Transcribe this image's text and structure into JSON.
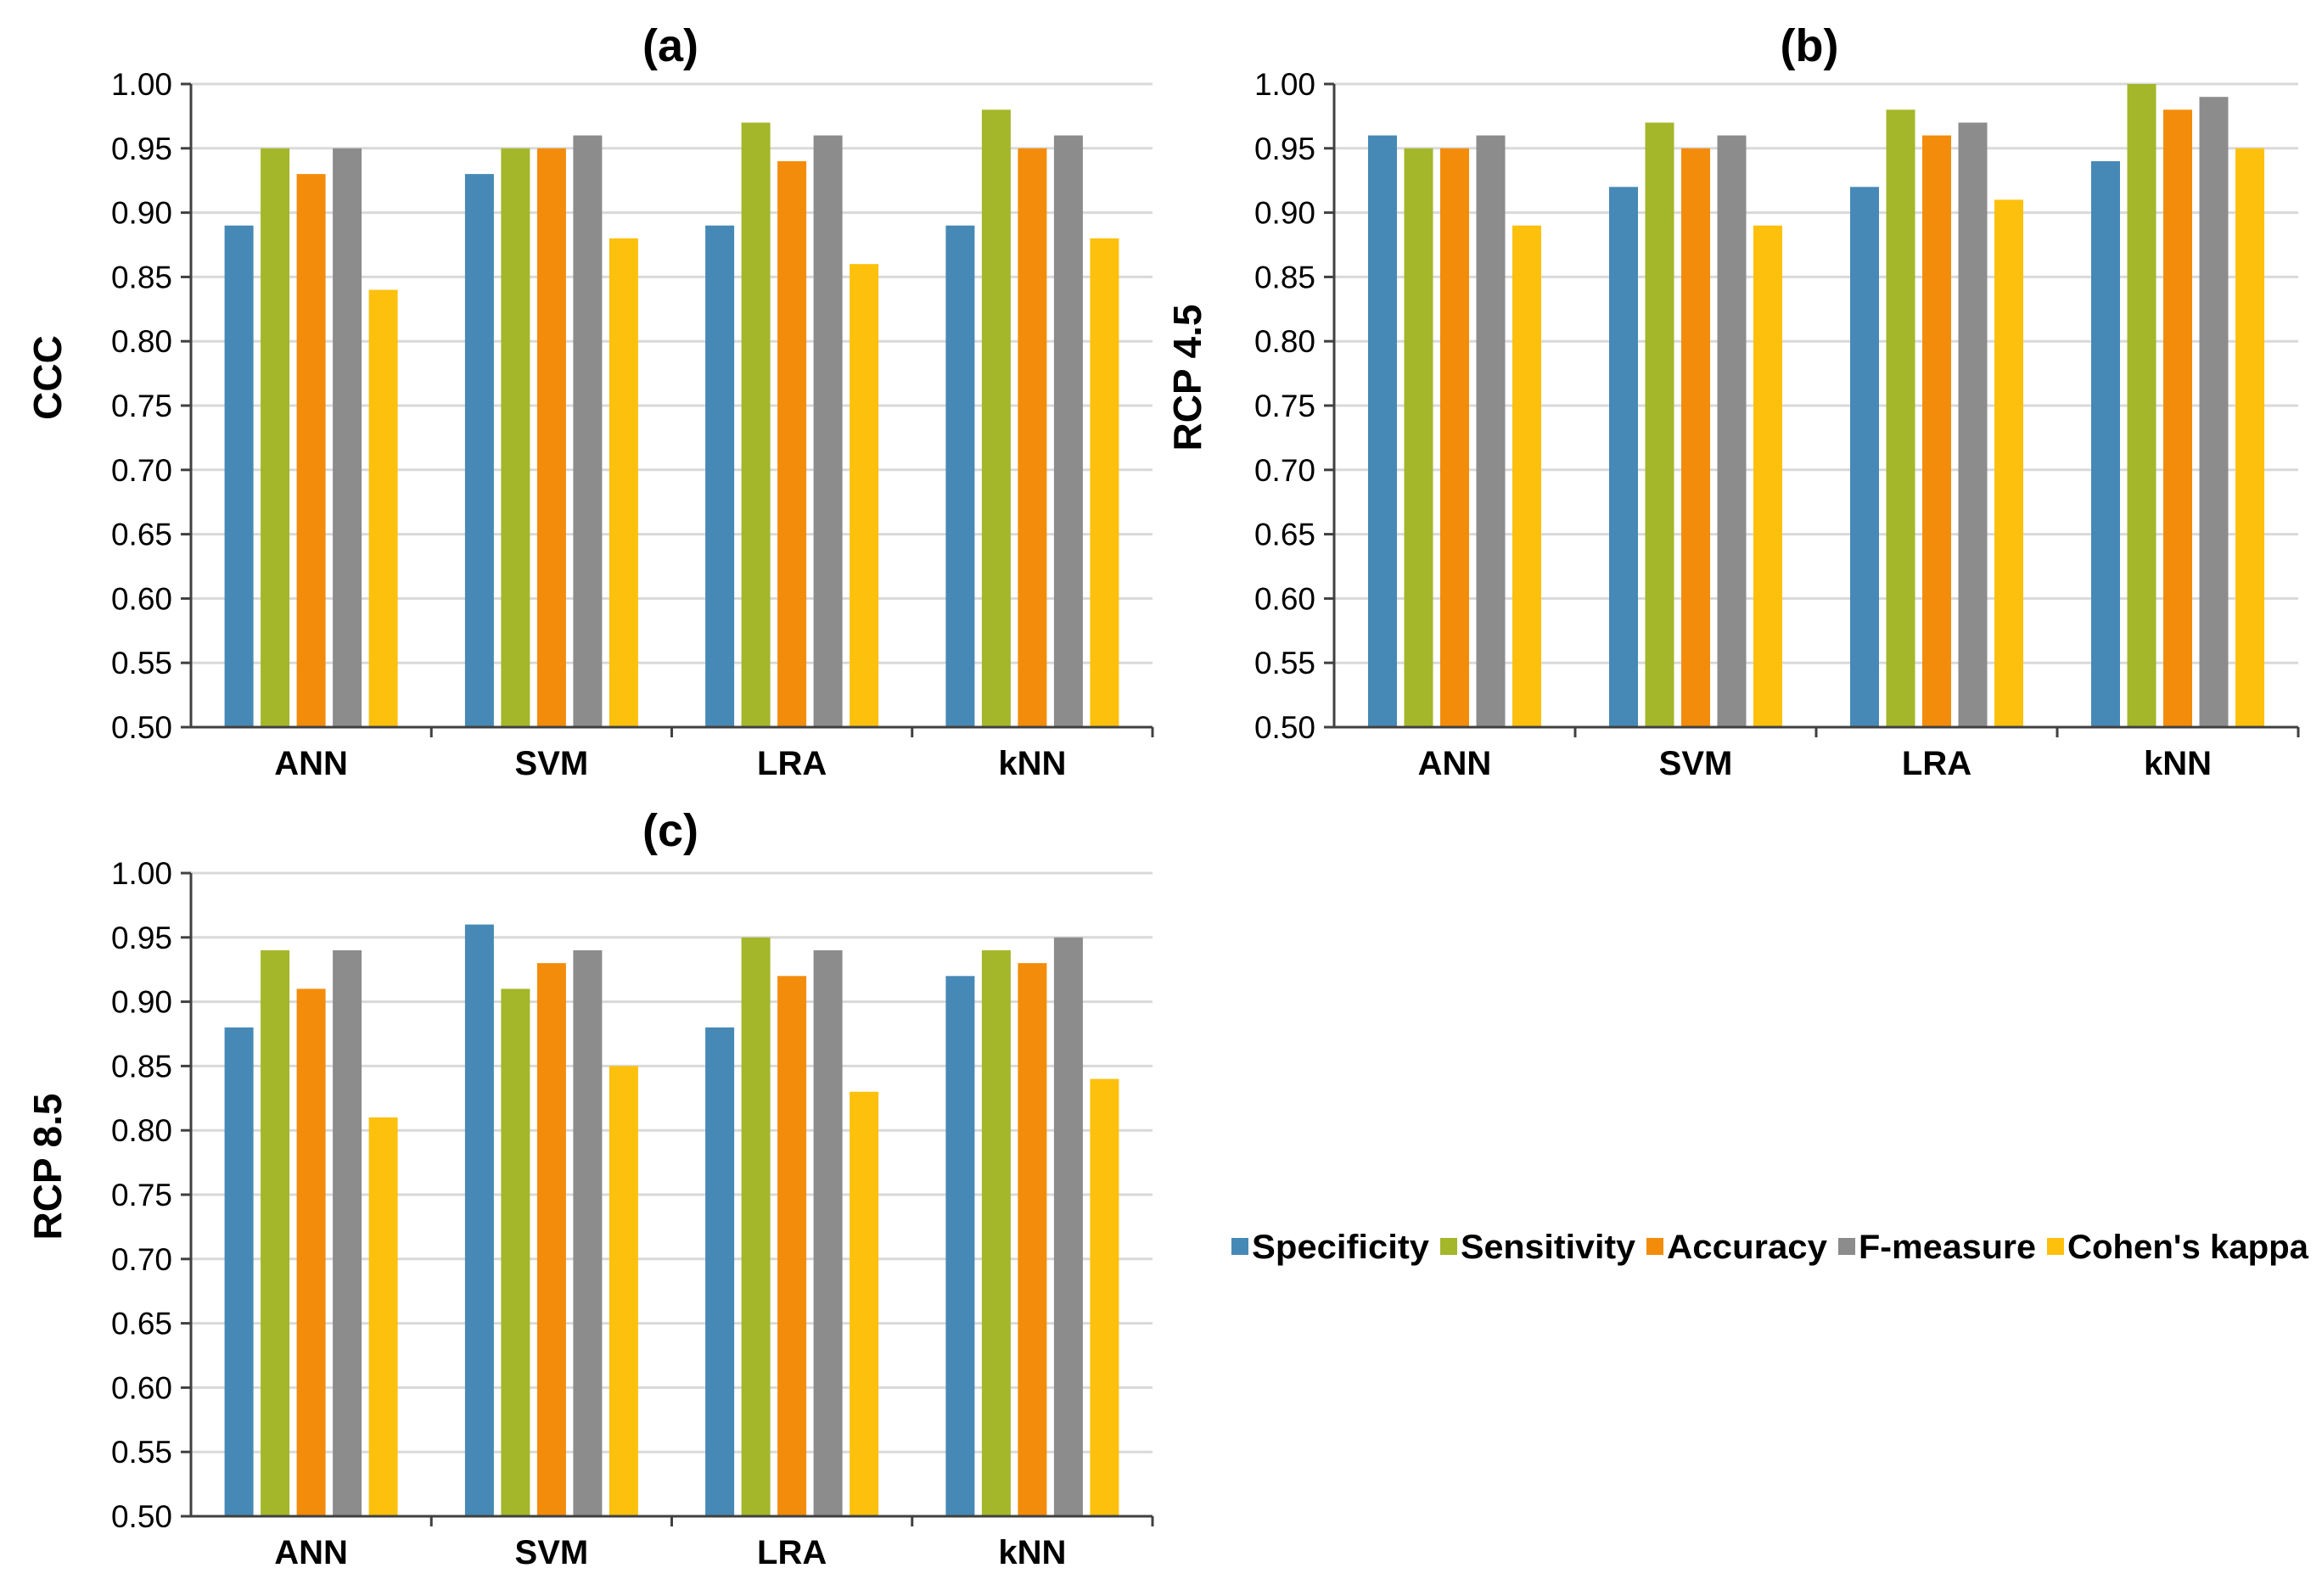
{
  "figure": {
    "legend": {
      "placement": "right-middle",
      "entries": [
        "Specificity",
        "Sensitivity",
        "Accuracy",
        "F-measure",
        "Cohen's kappa"
      ]
    },
    "series_colors": {
      "Specificity": "#4689B6",
      "Sensitivity": "#A4B629",
      "Accuracy": "#F38C0A",
      "F-measure": "#8C8C8C",
      "Cohen's kappa": "#FDC00D"
    }
  },
  "chart_data": [
    {
      "type": "bar",
      "title": "(a)",
      "ylabel": "CCC",
      "xlabel": "",
      "ylim": [
        0.5,
        1.0
      ],
      "ytick_step": 0.05,
      "yticks": [
        "0.50",
        "0.55",
        "0.60",
        "0.65",
        "0.70",
        "0.75",
        "0.80",
        "0.85",
        "0.90",
        "0.95",
        "1.00"
      ],
      "grid": true,
      "categories": [
        "ANN",
        "SVM",
        "LRA",
        "kNN"
      ],
      "series": [
        {
          "name": "Specificity",
          "values": [
            0.89,
            0.93,
            0.89,
            0.89
          ]
        },
        {
          "name": "Sensitivity",
          "values": [
            0.95,
            0.95,
            0.97,
            0.98
          ]
        },
        {
          "name": "Accuracy",
          "values": [
            0.93,
            0.95,
            0.94,
            0.95
          ]
        },
        {
          "name": "F-measure",
          "values": [
            0.95,
            0.96,
            0.96,
            0.96
          ]
        },
        {
          "name": "Cohen's kappa",
          "values": [
            0.84,
            0.88,
            0.86,
            0.88
          ]
        }
      ]
    },
    {
      "type": "bar",
      "title": "(b)",
      "ylabel": "RCP 4.5",
      "xlabel": "",
      "ylim": [
        0.5,
        1.0
      ],
      "ytick_step": 0.05,
      "yticks": [
        "0.50",
        "0.55",
        "0.60",
        "0.65",
        "0.70",
        "0.75",
        "0.80",
        "0.85",
        "0.90",
        "0.95",
        "1.00"
      ],
      "grid": true,
      "categories": [
        "ANN",
        "SVM",
        "LRA",
        "kNN"
      ],
      "series": [
        {
          "name": "Specificity",
          "values": [
            0.96,
            0.92,
            0.92,
            0.94
          ]
        },
        {
          "name": "Sensitivity",
          "values": [
            0.95,
            0.97,
            0.98,
            1.0
          ]
        },
        {
          "name": "Accuracy",
          "values": [
            0.95,
            0.95,
            0.96,
            0.98
          ]
        },
        {
          "name": "F-measure",
          "values": [
            0.96,
            0.96,
            0.97,
            0.99
          ]
        },
        {
          "name": "Cohen's kappa",
          "values": [
            0.89,
            0.89,
            0.91,
            0.95
          ]
        }
      ]
    },
    {
      "type": "bar",
      "title": "(c)",
      "ylabel": "RCP 8.5",
      "xlabel": "",
      "ylim": [
        0.5,
        1.0
      ],
      "ytick_step": 0.05,
      "yticks": [
        "0.50",
        "0.55",
        "0.60",
        "0.65",
        "0.70",
        "0.75",
        "0.80",
        "0.85",
        "0.90",
        "0.95",
        "1.00"
      ],
      "grid": true,
      "categories": [
        "ANN",
        "SVM",
        "LRA",
        "kNN"
      ],
      "series": [
        {
          "name": "Specificity",
          "values": [
            0.88,
            0.96,
            0.88,
            0.92
          ]
        },
        {
          "name": "Sensitivity",
          "values": [
            0.94,
            0.91,
            0.95,
            0.94
          ]
        },
        {
          "name": "Accuracy",
          "values": [
            0.91,
            0.93,
            0.92,
            0.93
          ]
        },
        {
          "name": "F-measure",
          "values": [
            0.94,
            0.94,
            0.94,
            0.95
          ]
        },
        {
          "name": "Cohen's kappa",
          "values": [
            0.81,
            0.85,
            0.83,
            0.84
          ]
        }
      ]
    }
  ]
}
